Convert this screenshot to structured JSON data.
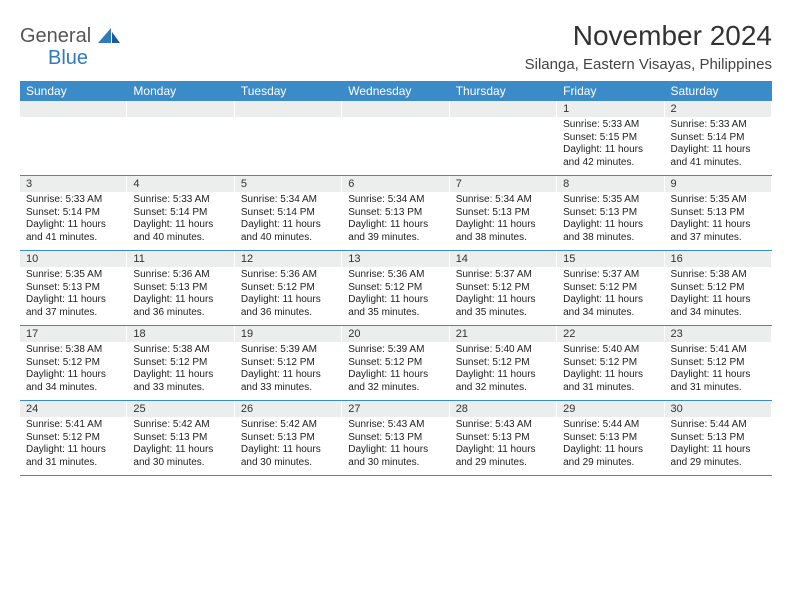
{
  "brand": {
    "part1": "General",
    "part2": "Blue"
  },
  "title": "November 2024",
  "location": "Silanga, Eastern Visayas, Philippines",
  "colors": {
    "header_bg": "#3b8bc8",
    "header_text": "#ffffff",
    "daynum_bg": "#eceded",
    "row_border": "#3b8bc8",
    "title_color": "#333333",
    "body_text": "#222222",
    "page_bg": "#ffffff",
    "logo_gray": "#555555",
    "logo_blue": "#2f7bbf"
  },
  "weekdays": [
    "Sunday",
    "Monday",
    "Tuesday",
    "Wednesday",
    "Thursday",
    "Friday",
    "Saturday"
  ],
  "weeks": [
    [
      {
        "num": "",
        "sunrise": "",
        "sunset": "",
        "daylight": ""
      },
      {
        "num": "",
        "sunrise": "",
        "sunset": "",
        "daylight": ""
      },
      {
        "num": "",
        "sunrise": "",
        "sunset": "",
        "daylight": ""
      },
      {
        "num": "",
        "sunrise": "",
        "sunset": "",
        "daylight": ""
      },
      {
        "num": "",
        "sunrise": "",
        "sunset": "",
        "daylight": ""
      },
      {
        "num": "1",
        "sunrise": "Sunrise: 5:33 AM",
        "sunset": "Sunset: 5:15 PM",
        "daylight": "Daylight: 11 hours and 42 minutes."
      },
      {
        "num": "2",
        "sunrise": "Sunrise: 5:33 AM",
        "sunset": "Sunset: 5:14 PM",
        "daylight": "Daylight: 11 hours and 41 minutes."
      }
    ],
    [
      {
        "num": "3",
        "sunrise": "Sunrise: 5:33 AM",
        "sunset": "Sunset: 5:14 PM",
        "daylight": "Daylight: 11 hours and 41 minutes."
      },
      {
        "num": "4",
        "sunrise": "Sunrise: 5:33 AM",
        "sunset": "Sunset: 5:14 PM",
        "daylight": "Daylight: 11 hours and 40 minutes."
      },
      {
        "num": "5",
        "sunrise": "Sunrise: 5:34 AM",
        "sunset": "Sunset: 5:14 PM",
        "daylight": "Daylight: 11 hours and 40 minutes."
      },
      {
        "num": "6",
        "sunrise": "Sunrise: 5:34 AM",
        "sunset": "Sunset: 5:13 PM",
        "daylight": "Daylight: 11 hours and 39 minutes."
      },
      {
        "num": "7",
        "sunrise": "Sunrise: 5:34 AM",
        "sunset": "Sunset: 5:13 PM",
        "daylight": "Daylight: 11 hours and 38 minutes."
      },
      {
        "num": "8",
        "sunrise": "Sunrise: 5:35 AM",
        "sunset": "Sunset: 5:13 PM",
        "daylight": "Daylight: 11 hours and 38 minutes."
      },
      {
        "num": "9",
        "sunrise": "Sunrise: 5:35 AM",
        "sunset": "Sunset: 5:13 PM",
        "daylight": "Daylight: 11 hours and 37 minutes."
      }
    ],
    [
      {
        "num": "10",
        "sunrise": "Sunrise: 5:35 AM",
        "sunset": "Sunset: 5:13 PM",
        "daylight": "Daylight: 11 hours and 37 minutes."
      },
      {
        "num": "11",
        "sunrise": "Sunrise: 5:36 AM",
        "sunset": "Sunset: 5:13 PM",
        "daylight": "Daylight: 11 hours and 36 minutes."
      },
      {
        "num": "12",
        "sunrise": "Sunrise: 5:36 AM",
        "sunset": "Sunset: 5:12 PM",
        "daylight": "Daylight: 11 hours and 36 minutes."
      },
      {
        "num": "13",
        "sunrise": "Sunrise: 5:36 AM",
        "sunset": "Sunset: 5:12 PM",
        "daylight": "Daylight: 11 hours and 35 minutes."
      },
      {
        "num": "14",
        "sunrise": "Sunrise: 5:37 AM",
        "sunset": "Sunset: 5:12 PM",
        "daylight": "Daylight: 11 hours and 35 minutes."
      },
      {
        "num": "15",
        "sunrise": "Sunrise: 5:37 AM",
        "sunset": "Sunset: 5:12 PM",
        "daylight": "Daylight: 11 hours and 34 minutes."
      },
      {
        "num": "16",
        "sunrise": "Sunrise: 5:38 AM",
        "sunset": "Sunset: 5:12 PM",
        "daylight": "Daylight: 11 hours and 34 minutes."
      }
    ],
    [
      {
        "num": "17",
        "sunrise": "Sunrise: 5:38 AM",
        "sunset": "Sunset: 5:12 PM",
        "daylight": "Daylight: 11 hours and 34 minutes."
      },
      {
        "num": "18",
        "sunrise": "Sunrise: 5:38 AM",
        "sunset": "Sunset: 5:12 PM",
        "daylight": "Daylight: 11 hours and 33 minutes."
      },
      {
        "num": "19",
        "sunrise": "Sunrise: 5:39 AM",
        "sunset": "Sunset: 5:12 PM",
        "daylight": "Daylight: 11 hours and 33 minutes."
      },
      {
        "num": "20",
        "sunrise": "Sunrise: 5:39 AM",
        "sunset": "Sunset: 5:12 PM",
        "daylight": "Daylight: 11 hours and 32 minutes."
      },
      {
        "num": "21",
        "sunrise": "Sunrise: 5:40 AM",
        "sunset": "Sunset: 5:12 PM",
        "daylight": "Daylight: 11 hours and 32 minutes."
      },
      {
        "num": "22",
        "sunrise": "Sunrise: 5:40 AM",
        "sunset": "Sunset: 5:12 PM",
        "daylight": "Daylight: 11 hours and 31 minutes."
      },
      {
        "num": "23",
        "sunrise": "Sunrise: 5:41 AM",
        "sunset": "Sunset: 5:12 PM",
        "daylight": "Daylight: 11 hours and 31 minutes."
      }
    ],
    [
      {
        "num": "24",
        "sunrise": "Sunrise: 5:41 AM",
        "sunset": "Sunset: 5:12 PM",
        "daylight": "Daylight: 11 hours and 31 minutes."
      },
      {
        "num": "25",
        "sunrise": "Sunrise: 5:42 AM",
        "sunset": "Sunset: 5:13 PM",
        "daylight": "Daylight: 11 hours and 30 minutes."
      },
      {
        "num": "26",
        "sunrise": "Sunrise: 5:42 AM",
        "sunset": "Sunset: 5:13 PM",
        "daylight": "Daylight: 11 hours and 30 minutes."
      },
      {
        "num": "27",
        "sunrise": "Sunrise: 5:43 AM",
        "sunset": "Sunset: 5:13 PM",
        "daylight": "Daylight: 11 hours and 30 minutes."
      },
      {
        "num": "28",
        "sunrise": "Sunrise: 5:43 AM",
        "sunset": "Sunset: 5:13 PM",
        "daylight": "Daylight: 11 hours and 29 minutes."
      },
      {
        "num": "29",
        "sunrise": "Sunrise: 5:44 AM",
        "sunset": "Sunset: 5:13 PM",
        "daylight": "Daylight: 11 hours and 29 minutes."
      },
      {
        "num": "30",
        "sunrise": "Sunrise: 5:44 AM",
        "sunset": "Sunset: 5:13 PM",
        "daylight": "Daylight: 11 hours and 29 minutes."
      }
    ]
  ]
}
